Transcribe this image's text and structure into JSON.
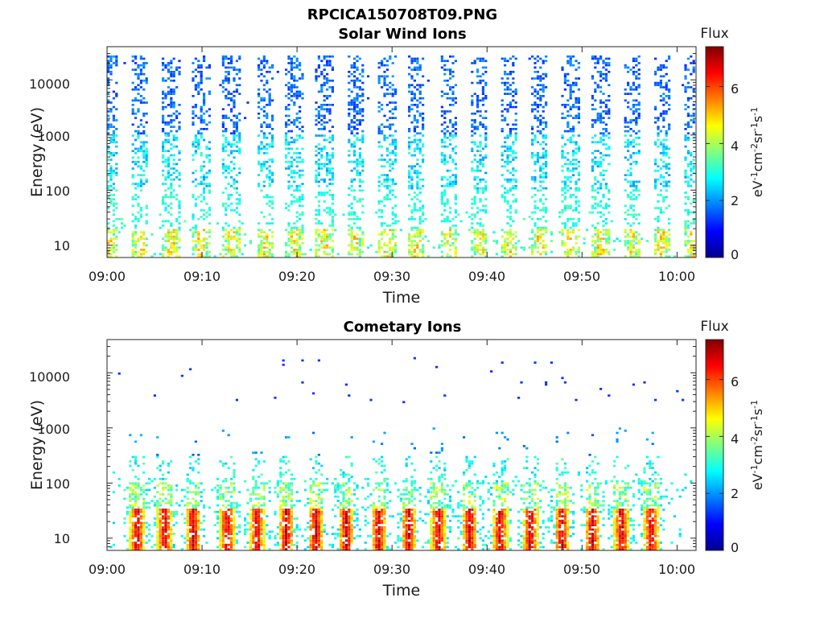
{
  "figure": {
    "file_title": "RPCICA150708T09.PNG"
  },
  "chart_data": [
    {
      "type": "heatmap",
      "title": "Solar Wind Ions",
      "xlabel": "Time",
      "ylabel": "Energy (eV)",
      "x_tick_labels": [
        "09:00",
        "09:10",
        "09:20",
        "09:30",
        "09:40",
        "09:50",
        "10:00"
      ],
      "x_range": [
        "09:00",
        "10:02"
      ],
      "y_scale": "log",
      "y_tick_labels": [
        "10",
        "100",
        "1000",
        "10000"
      ],
      "y_range": [
        6,
        40000
      ],
      "colorbar": {
        "label": "Flux",
        "unit_base": "eV",
        "unit_sup1": "-1",
        "unit_mid1": "cm",
        "unit_sup2": "-2",
        "unit_mid2": "sr",
        "unit_sup3": "-1",
        "unit_mid3": "s",
        "unit_sup4": "-1",
        "range": [
          0,
          7.4
        ],
        "tick_labels": [
          "0",
          "2",
          "4",
          "6"
        ],
        "colormap": "jet"
      },
      "sweep_times_min": [
        0.3,
        3.5,
        6.8,
        9.9,
        13.1,
        16.6,
        19.7,
        22.9,
        26.1,
        29.5,
        32.6,
        35.9,
        39.2,
        42.4,
        45.6,
        48.8,
        52.0,
        55.3,
        58.4,
        61.6
      ],
      "population": "solar-wind"
    },
    {
      "type": "heatmap",
      "title": "Cometary Ions",
      "xlabel": "Time",
      "ylabel": "Energy (eV)",
      "x_tick_labels": [
        "09:00",
        "09:10",
        "09:20",
        "09:30",
        "09:40",
        "09:50",
        "10:00"
      ],
      "x_range": [
        "09:00",
        "10:02"
      ],
      "y_scale": "log",
      "y_tick_labels": [
        "10",
        "100",
        "1000",
        "10000"
      ],
      "y_range": [
        6,
        40000
      ],
      "colorbar": {
        "label": "Flux",
        "unit_base": "eV",
        "unit_sup1": "-1",
        "unit_mid1": "cm",
        "unit_sup2": "-2",
        "unit_mid2": "sr",
        "unit_sup3": "-1",
        "unit_mid3": "s",
        "unit_sup4": "-1",
        "range": [
          0,
          7.4
        ],
        "tick_labels": [
          "0",
          "2",
          "4",
          "6"
        ],
        "colormap": "jet"
      },
      "sweep_times_min": [
        3.2,
        6.1,
        9.1,
        12.7,
        15.8,
        18.9,
        22.0,
        25.2,
        28.6,
        31.8,
        34.9,
        38.2,
        41.4,
        44.6,
        47.9,
        51.1,
        54.2,
        57.3
      ],
      "population": "cometary"
    }
  ]
}
